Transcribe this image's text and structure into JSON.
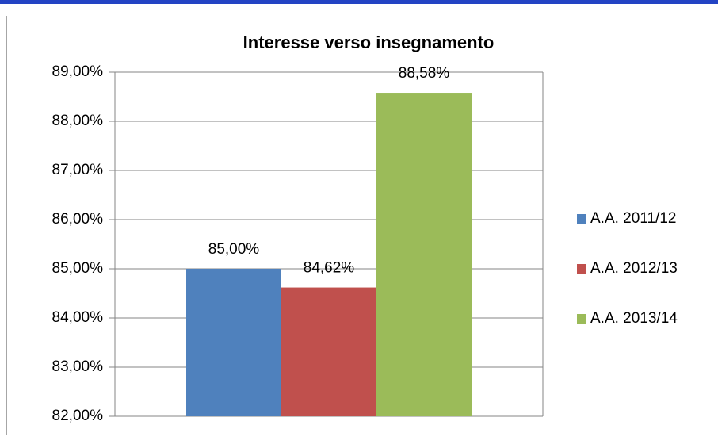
{
  "chart_data": {
    "type": "bar",
    "title": "Interesse verso insegnamento",
    "categories": [
      null
    ],
    "series": [
      {
        "name": "A.A. 2011/12",
        "color": "#4f81bd",
        "values": [
          85.0
        ],
        "value_labels": [
          "85,00%"
        ]
      },
      {
        "name": "A.A. 2012/13",
        "color": "#c0504d",
        "values": [
          84.62
        ],
        "value_labels": [
          "84,62%"
        ]
      },
      {
        "name": "A.A. 2013/14",
        "color": "#9bbb59",
        "values": [
          88.58
        ],
        "value_labels": [
          "88,58%"
        ]
      }
    ],
    "ylim": [
      82,
      89
    ],
    "yticks": [
      {
        "value": 82,
        "label": "82,00%"
      },
      {
        "value": 83,
        "label": "83,00%"
      },
      {
        "value": 84,
        "label": "84,00%"
      },
      {
        "value": 85,
        "label": "85,00%"
      },
      {
        "value": 86,
        "label": "86,00%"
      },
      {
        "value": 87,
        "label": "87,00%"
      },
      {
        "value": 88,
        "label": "88,00%"
      },
      {
        "value": 89,
        "label": "89,00%"
      }
    ],
    "grid": true,
    "legend": "right"
  }
}
